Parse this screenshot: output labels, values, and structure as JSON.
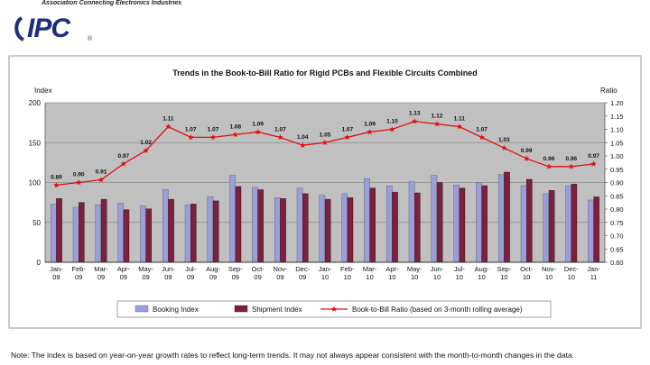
{
  "logo": {
    "tagline": "Association Connecting Electronics Industries",
    "name": "IPC",
    "reg": "®"
  },
  "chart_data": {
    "type": "bar+line",
    "title": "Trends in the Book-to-Bill Ratio for Rigid PCBs and Flexible Circuits Combined",
    "ylabel_left": "Index",
    "ylabel_right": "Ratio",
    "ylim_left": [
      0,
      200
    ],
    "yticks_left": [
      "0",
      "50",
      "100",
      "150",
      "200"
    ],
    "ylim_right": [
      0.6,
      1.2
    ],
    "yticks_right": [
      "0.60",
      "0.65",
      "0.70",
      "0.75",
      "0.80",
      "0.85",
      "0.90",
      "0.95",
      "1.00",
      "1.05",
      "1.10",
      "1.15",
      "1.20"
    ],
    "categories": [
      [
        "Jan-",
        "09"
      ],
      [
        "Feb-",
        "09"
      ],
      [
        "Mar-",
        "09"
      ],
      [
        "Apr-",
        "09"
      ],
      [
        "May-",
        "09"
      ],
      [
        "Jun-",
        "09"
      ],
      [
        "Jul-",
        "09"
      ],
      [
        "Aug-",
        "09"
      ],
      [
        "Sep-",
        "09"
      ],
      [
        "Oct-",
        "09"
      ],
      [
        "Nov-",
        "09"
      ],
      [
        "Dec-",
        "09"
      ],
      [
        "Jan-",
        "10"
      ],
      [
        "Feb-",
        "10"
      ],
      [
        "Mar-",
        "10"
      ],
      [
        "Apr-",
        "10"
      ],
      [
        "May-",
        "10"
      ],
      [
        "Jun-",
        "10"
      ],
      [
        "Jul-",
        "10"
      ],
      [
        "Aug-",
        "10"
      ],
      [
        "Sep-",
        "10"
      ],
      [
        "Oct-",
        "10"
      ],
      [
        "Nov-",
        "10"
      ],
      [
        "Dec-",
        "10"
      ],
      [
        "Jan-",
        "11"
      ]
    ],
    "series": [
      {
        "name": "Booking Index",
        "color": "#9a9fd8",
        "values": [
          73,
          69,
          72,
          74,
          71,
          91,
          72,
          82,
          109,
          94,
          81,
          93,
          84,
          86,
          105,
          96,
          101,
          109,
          97,
          100,
          110,
          96,
          86,
          96,
          78
        ]
      },
      {
        "name": "Shipment Index",
        "color": "#7a2140",
        "values": [
          80,
          75,
          79,
          66,
          67,
          79,
          73,
          77,
          95,
          91,
          80,
          86,
          79,
          81,
          93,
          88,
          87,
          100,
          93,
          96,
          113,
          104,
          90,
          98,
          82
        ]
      },
      {
        "name": "Book-to-Bill Ratio (based on 3-month rolling average)",
        "color": "#e01010",
        "axis": "right",
        "values": [
          0.89,
          0.9,
          0.91,
          0.97,
          1.02,
          1.11,
          1.07,
          1.07,
          1.08,
          1.09,
          1.07,
          1.04,
          1.05,
          1.07,
          1.09,
          1.1,
          1.13,
          1.12,
          1.11,
          1.07,
          1.03,
          0.99,
          0.96,
          0.96,
          0.97
        ],
        "labels": [
          "0.89",
          "0.90",
          "0.91",
          "0.97",
          "1.02",
          "1.11",
          "1.07",
          "1.07",
          "1.08",
          "1.09",
          "1.07",
          "1.04",
          "1.05",
          "1.07",
          "1.09",
          "1.10",
          "1.13",
          "1.12",
          "1.11",
          "1.07",
          "1.03",
          "0.99",
          "0.96",
          "0.96",
          "0.97"
        ]
      }
    ],
    "legend": [
      "Booking Index",
      "Shipment Index",
      "Book-to-Bill Ratio (based on 3-month rolling average)"
    ],
    "grid": true
  },
  "note": "Note: The index is based on year-on-year growth rates to reflect long-term trends. It may not always appear consistent with the month-to-month changes in the data."
}
